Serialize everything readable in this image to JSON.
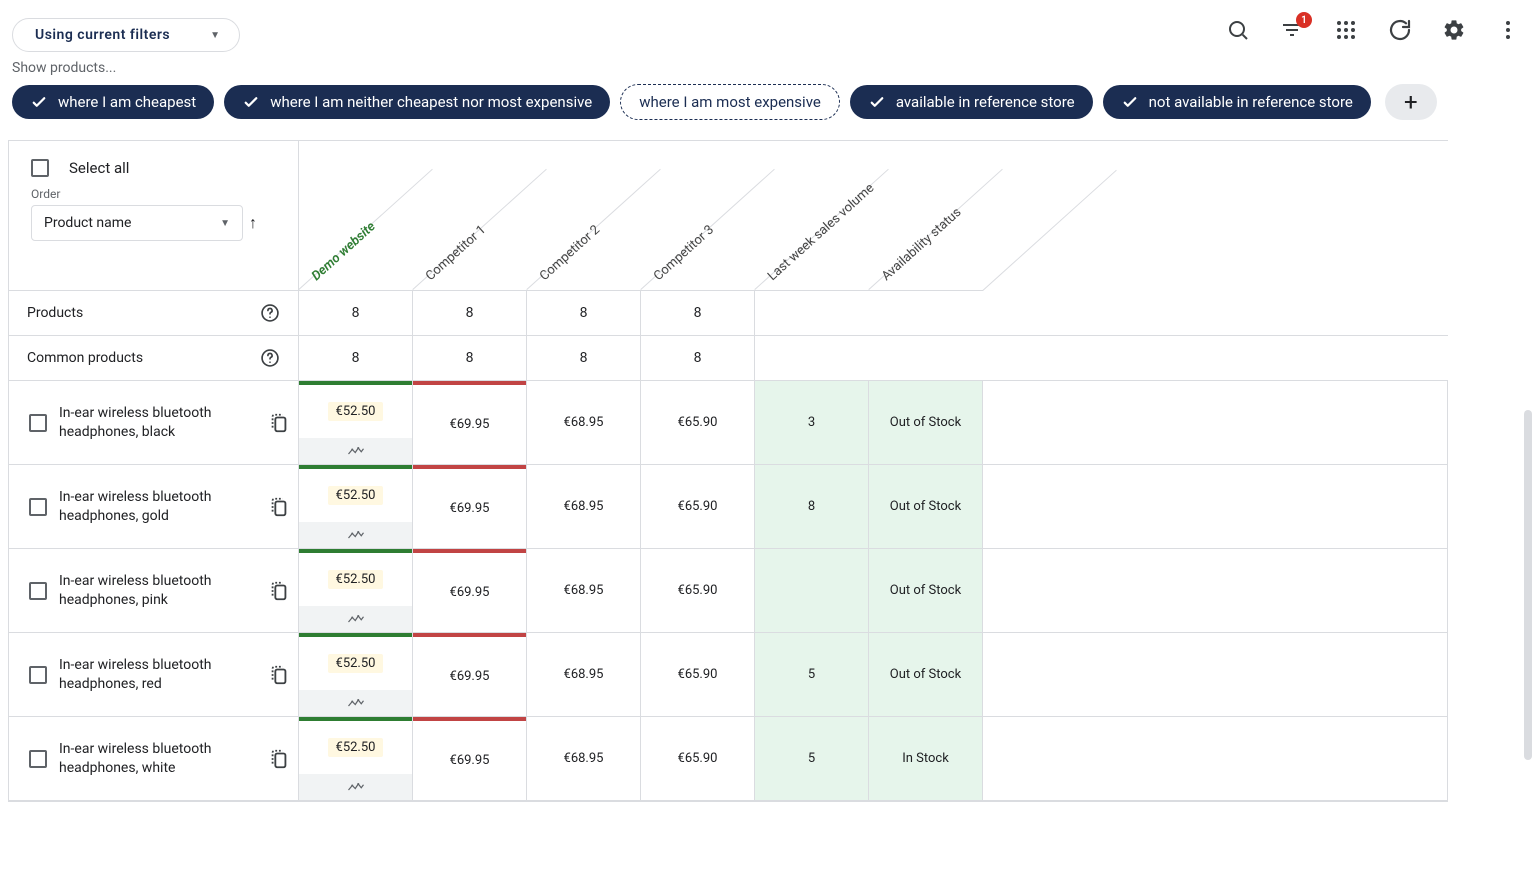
{
  "filter_mode": {
    "label": "Using current filters"
  },
  "notifications": 1,
  "chips": {
    "hint": "Show products...",
    "items": [
      {
        "label": "where I am cheapest",
        "selected": true
      },
      {
        "label": "where I am neither cheapest nor most expensive",
        "selected": true
      },
      {
        "label": "where I am most expensive",
        "selected": false
      },
      {
        "label": "available in reference store",
        "selected": true
      },
      {
        "label": "not available in reference store",
        "selected": true
      }
    ]
  },
  "left_panel": {
    "select_all": "Select all",
    "order_label": "Order",
    "order_value": "Product name"
  },
  "columns": {
    "demo": "Demo website",
    "comp1": "Competitor 1",
    "comp2": "Competitor 2",
    "comp3": "Competitor 3",
    "sales": "Last week sales volume",
    "avail": "Availability status"
  },
  "counts": {
    "products_label": "Products",
    "products": {
      "demo": "8",
      "comp1": "8",
      "comp2": "8",
      "comp3": "8"
    },
    "common_label": "Common products",
    "common": {
      "demo": "8",
      "comp1": "8",
      "comp2": "8",
      "comp3": "8"
    }
  },
  "rows": [
    {
      "name": "In-ear wireless bluetooth headphones, black",
      "demo": {
        "price": "€52.50",
        "bar": "green"
      },
      "comp1": {
        "price": "€69.95",
        "bar": "red"
      },
      "comp2": {
        "price": "€68.95"
      },
      "comp3": {
        "price": "€65.90"
      },
      "sales": "3",
      "avail": "Out of Stock"
    },
    {
      "name": "In-ear wireless bluetooth headphones, gold",
      "demo": {
        "price": "€52.50",
        "bar": "green"
      },
      "comp1": {
        "price": "€69.95",
        "bar": "red"
      },
      "comp2": {
        "price": "€68.95"
      },
      "comp3": {
        "price": "€65.90"
      },
      "sales": "8",
      "avail": "Out of Stock"
    },
    {
      "name": "In-ear wireless bluetooth headphones, pink",
      "demo": {
        "price": "€52.50",
        "bar": "green"
      },
      "comp1": {
        "price": "€69.95",
        "bar": "red"
      },
      "comp2": {
        "price": "€68.95"
      },
      "comp3": {
        "price": "€65.90"
      },
      "sales": "",
      "avail": "Out of Stock"
    },
    {
      "name": "In-ear wireless bluetooth headphones, red",
      "demo": {
        "price": "€52.50",
        "bar": "green"
      },
      "comp1": {
        "price": "€69.95",
        "bar": "red"
      },
      "comp2": {
        "price": "€68.95"
      },
      "comp3": {
        "price": "€65.90"
      },
      "sales": "5",
      "avail": "Out of Stock"
    },
    {
      "name": "In-ear wireless bluetooth headphones, white",
      "demo": {
        "price": "€52.50",
        "bar": "green"
      },
      "comp1": {
        "price": "€69.95",
        "bar": "red"
      },
      "comp2": {
        "price": "€68.95"
      },
      "comp3": {
        "price": "€65.90"
      },
      "sales": "5",
      "avail": "In Stock"
    }
  ],
  "style": {
    "navy": "#1b2d52",
    "green_bar": "#2e7d32",
    "red_bar": "#c14444",
    "gold_bg": "#fff8e1",
    "green_bg": "#e6f5eb"
  }
}
